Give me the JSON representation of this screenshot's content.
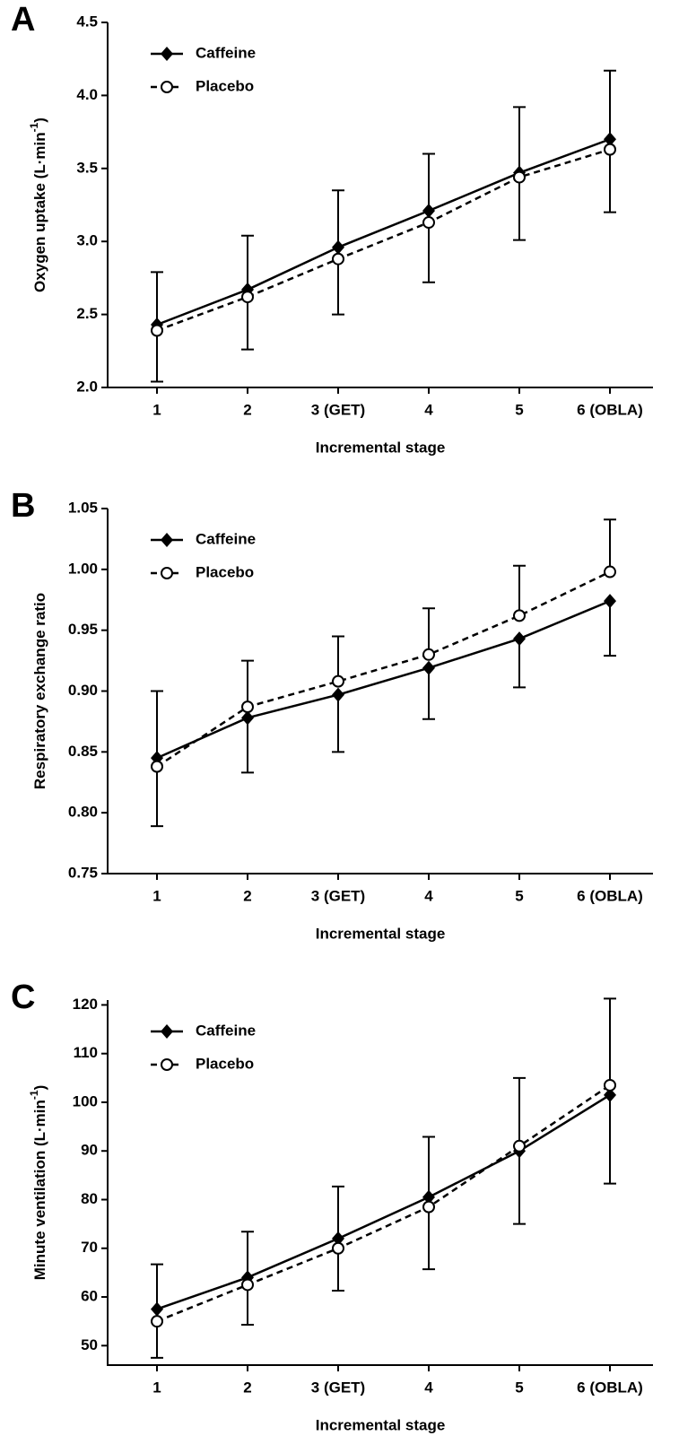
{
  "chart_data": [
    {
      "type": "line",
      "panel_label": "A",
      "ylabel": {
        "text": "Oxygen uptake (L·min",
        "sup": "-1",
        "end": ")"
      },
      "xlabel": "Incremental stage",
      "categories": [
        "1",
        "2",
        "3 (GET)",
        "4",
        "5",
        "6 (OBLA)"
      ],
      "ylim": [
        2.0,
        4.5
      ],
      "yticks": [
        {
          "value": 2,
          "label": "2.0"
        },
        2.5,
        {
          "value": 3,
          "label": "3.0"
        },
        3.5,
        {
          "value": 4,
          "label": "4.0"
        },
        4.5
      ],
      "legend": "upper left",
      "series": [
        {
          "name": "Caffeine",
          "color": "#000000",
          "marker": "diamond",
          "dash": false,
          "error_direction": "up",
          "values": [
            2.43,
            2.67,
            2.96,
            3.21,
            3.47,
            3.7
          ],
          "errors": [
            0.36,
            0.37,
            0.39,
            0.39,
            0.45,
            0.47
          ]
        },
        {
          "name": "Placebo",
          "color": "#000000",
          "marker": "circle",
          "dash": true,
          "error_direction": "down",
          "values": [
            2.39,
            2.62,
            2.88,
            3.13,
            3.44,
            3.63
          ],
          "errors": [
            0.35,
            0.36,
            0.38,
            0.41,
            0.43,
            0.43
          ]
        }
      ]
    },
    {
      "type": "line",
      "panel_label": "B",
      "ylabel": {
        "text": "Respiratory exchange ratio"
      },
      "xlabel": "Incremental stage",
      "categories": [
        "1",
        "2",
        "3 (GET)",
        "4",
        "5",
        "6 (OBLA)"
      ],
      "ylim": [
        0.75,
        1.05
      ],
      "yticks": [
        0.75,
        {
          "value": 0.8,
          "label": "0.80"
        },
        0.85,
        {
          "value": 0.9,
          "label": "0.90"
        },
        0.95,
        {
          "value": 1,
          "label": "1.00"
        },
        1.05
      ],
      "legend": "upper left",
      "series": [
        {
          "name": "Caffeine",
          "color": "#000000",
          "marker": "diamond",
          "dash": false,
          "error_direction": "down",
          "values": [
            0.845,
            0.878,
            0.897,
            0.919,
            0.943,
            0.974
          ],
          "errors": [
            0.056,
            0.045,
            0.047,
            0.042,
            0.04,
            0.045
          ]
        },
        {
          "name": "Placebo",
          "color": "#000000",
          "marker": "circle",
          "dash": true,
          "error_direction": "up",
          "values": [
            0.838,
            0.887,
            0.908,
            0.93,
            0.962,
            0.998
          ],
          "errors": [
            0.062,
            0.038,
            0.037,
            0.038,
            0.041,
            0.043
          ]
        }
      ]
    },
    {
      "type": "line",
      "panel_label": "C",
      "ylabel": {
        "text": "Minute ventilation (L·min",
        "sup": "-1",
        "end": ")"
      },
      "xlabel": "Incremental stage",
      "categories": [
        "1",
        "2",
        "3 (GET)",
        "4",
        "5",
        "6 (OBLA)"
      ],
      "ylim": [
        46,
        121
      ],
      "yticks": [
        50,
        60,
        70,
        80,
        90,
        100,
        110,
        120
      ],
      "legend": "upper left",
      "series": [
        {
          "name": "Caffeine",
          "color": "#000000",
          "marker": "diamond",
          "dash": false,
          "error_direction": "up",
          "values": [
            57.5,
            64,
            72,
            80.5,
            90,
            101.5
          ],
          "errors": [
            9.2,
            9.4,
            10.7,
            12.4,
            15,
            19.8
          ]
        },
        {
          "name": "Placebo",
          "color": "#000000",
          "marker": "circle",
          "dash": true,
          "error_direction": "down",
          "values": [
            55,
            62.5,
            70,
            78.5,
            91,
            103.5
          ],
          "errors": [
            7.5,
            8.2,
            8.7,
            12.8,
            16,
            20.2
          ]
        }
      ]
    }
  ]
}
